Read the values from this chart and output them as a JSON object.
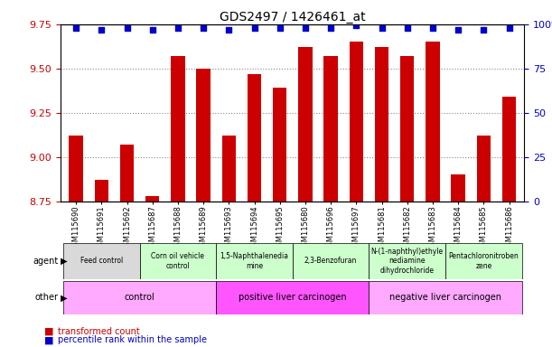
{
  "title": "GDS2497 / 1426461_at",
  "samples": [
    "GSM115690",
    "GSM115691",
    "GSM115692",
    "GSM115687",
    "GSM115688",
    "GSM115689",
    "GSM115693",
    "GSM115694",
    "GSM115695",
    "GSM115680",
    "GSM115696",
    "GSM115697",
    "GSM115681",
    "GSM115682",
    "GSM115683",
    "GSM115684",
    "GSM115685",
    "GSM115686"
  ],
  "bar_values": [
    9.12,
    8.87,
    9.07,
    8.78,
    9.57,
    9.5,
    9.12,
    9.47,
    9.39,
    9.62,
    9.57,
    9.65,
    9.62,
    9.57,
    9.65,
    8.9,
    9.12,
    9.34
  ],
  "percentile_values": [
    9.73,
    9.72,
    9.73,
    9.72,
    9.73,
    9.73,
    9.72,
    9.73,
    9.73,
    9.73,
    9.73,
    9.745,
    9.73,
    9.73,
    9.73,
    9.72,
    9.72,
    9.73
  ],
  "bar_color": "#cc0000",
  "dot_color": "#0000cc",
  "ylim_left": [
    8.75,
    9.75
  ],
  "ylim_right": [
    0,
    100
  ],
  "yticks_left": [
    8.75,
    9.0,
    9.25,
    9.5,
    9.75
  ],
  "yticks_right": [
    0,
    25,
    50,
    75,
    100
  ],
  "agent_groups": [
    {
      "label": "Feed control",
      "start": 0,
      "end": 3,
      "color": "#d9d9d9"
    },
    {
      "label": "Corn oil vehicle\ncontrol",
      "start": 3,
      "end": 6,
      "color": "#ccffcc"
    },
    {
      "label": "1,5-Naphthalenedia\nmine",
      "start": 6,
      "end": 9,
      "color": "#ccffcc"
    },
    {
      "label": "2,3-Benzofuran",
      "start": 9,
      "end": 12,
      "color": "#ccffcc"
    },
    {
      "label": "N-(1-naphthyl)ethyle\nnediamine\ndihydrochloride",
      "start": 12,
      "end": 15,
      "color": "#ccffcc"
    },
    {
      "label": "Pentachloronitroben\nzene",
      "start": 15,
      "end": 18,
      "color": "#ccffcc"
    }
  ],
  "other_groups": [
    {
      "label": "control",
      "start": 0,
      "end": 6,
      "color": "#ffaaff"
    },
    {
      "label": "positive liver carcinogen",
      "start": 6,
      "end": 12,
      "color": "#ff55ff"
    },
    {
      "label": "negative liver carcinogen",
      "start": 12,
      "end": 18,
      "color": "#ffaaff"
    }
  ],
  "legend_items": [
    {
      "label": "transformed count",
      "color": "#cc0000"
    },
    {
      "label": "percentile rank within the sample",
      "color": "#0000cc"
    }
  ],
  "grid_color": "#888888",
  "bar_width": 0.55
}
